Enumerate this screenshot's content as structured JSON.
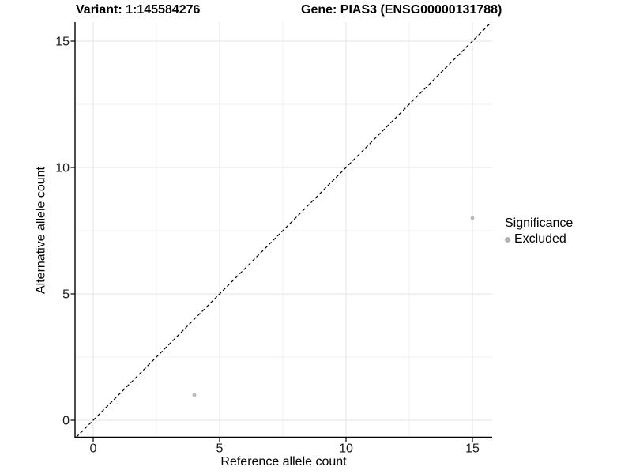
{
  "titles": {
    "variant": "Variant: 1:145584276",
    "gene": "Gene: PIAS3 (ENSG00000131788)"
  },
  "axes": {
    "x_label": "Reference allele count",
    "y_label": "Alternative allele count"
  },
  "legend": {
    "title": "Significance",
    "items": [
      {
        "label": "Excluded",
        "color": "#b3b3b3"
      }
    ]
  },
  "colors": {
    "major_grid": "#e5e5e5",
    "minor_grid": "#f1f1f1",
    "axis": "#000000",
    "identity_line": "#000000",
    "point": "#b9b9b9"
  },
  "chart_data": {
    "type": "scatter",
    "title_left": "Variant: 1:145584276",
    "title_right": "Gene: PIAS3 (ENSG00000131788)",
    "xlabel": "Reference allele count",
    "ylabel": "Alternative allele count",
    "xlim": [
      -0.75,
      15.75
    ],
    "ylim": [
      -0.75,
      15.75
    ],
    "x_ticks": [
      0,
      5,
      10,
      15
    ],
    "y_ticks": [
      0,
      5,
      10,
      15
    ],
    "x_minor": [
      2.5,
      7.5,
      12.5
    ],
    "y_minor": [
      2.5,
      7.5,
      12.5
    ],
    "grid": true,
    "legend_position": "right",
    "identity_line": {
      "slope": 1,
      "intercept": 0,
      "style": "dashed",
      "color": "#000000"
    },
    "series": [
      {
        "name": "Excluded",
        "color": "#b9b9b9",
        "points": [
          {
            "x": 4,
            "y": 1
          },
          {
            "x": 15,
            "y": 8
          }
        ]
      }
    ]
  }
}
